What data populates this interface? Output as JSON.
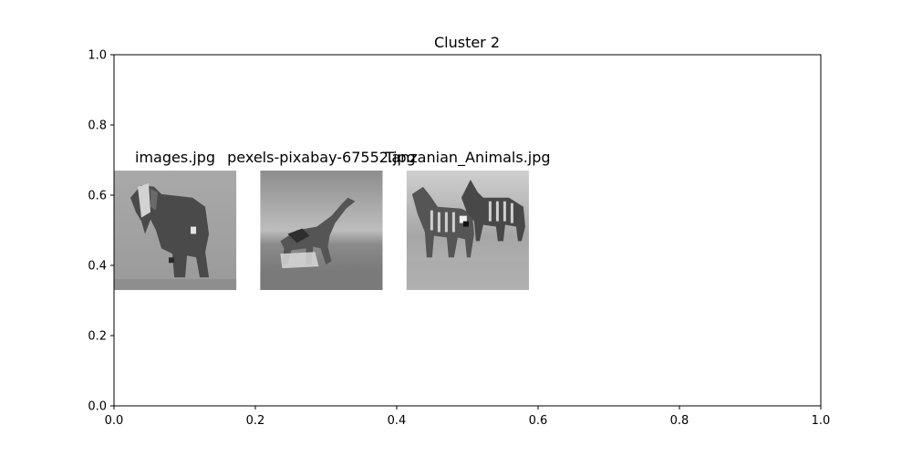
{
  "chart_data": {
    "type": "scatter",
    "title": "Cluster 2",
    "xlabel": "",
    "ylabel": "",
    "xlim": [
      0.0,
      1.0
    ],
    "ylim": [
      0.0,
      1.0
    ],
    "grid": false,
    "xticks": [
      "0.0",
      "0.2",
      "0.4",
      "0.6",
      "0.8",
      "1.0"
    ],
    "yticks": [
      "0.0",
      "0.2",
      "0.4",
      "0.6",
      "0.8",
      "1.0"
    ],
    "thumbnails": [
      {
        "label": "images.jpg",
        "x": [
          0.0,
          0.173
        ],
        "y": [
          0.33,
          0.67
        ],
        "subject": "elephant-grayscale-thumbnail"
      },
      {
        "label": "pexels-pixabay-67552.jpg",
        "x": [
          0.207,
          0.38
        ],
        "y": [
          0.33,
          0.67
        ],
        "subject": "giraffe-grayscale-thumbnail"
      },
      {
        "label": "Tanzanian_Animals.jpg",
        "x": [
          0.414,
          0.587
        ],
        "y": [
          0.33,
          0.67
        ],
        "subject": "zebras-grayscale-thumbnail"
      }
    ],
    "colors": {
      "axis": "#000000",
      "background": "#ffffff"
    }
  }
}
